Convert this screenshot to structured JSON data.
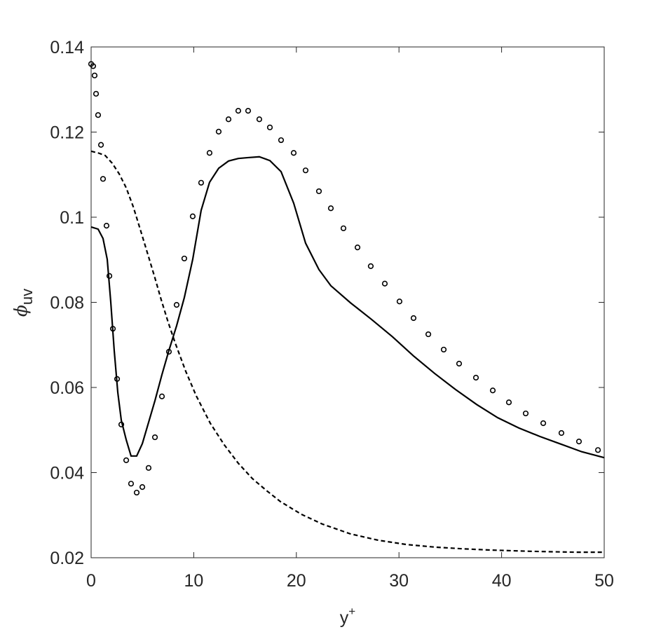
{
  "chart_data": {
    "type": "line",
    "xlabel": {
      "base": "y",
      "sup": "+"
    },
    "ylabel": {
      "symbol": "ϕ",
      "sub": "uv"
    },
    "xlim": [
      0,
      50
    ],
    "xticks": [
      0,
      10,
      20,
      30,
      40,
      50
    ],
    "ylim": [
      0.02,
      0.14
    ],
    "yticks": [
      0.02,
      0.04,
      0.06,
      0.08,
      0.1,
      0.12,
      0.14
    ],
    "series": [
      {
        "style": "markers",
        "color": "#000000",
        "x": [
          0,
          0.2,
          0.34,
          0.48,
          0.68,
          0.96,
          1.16,
          1.5,
          1.78,
          2.12,
          2.53,
          2.94,
          3.42,
          3.89,
          4.44,
          4.99,
          5.6,
          6.22,
          6.9,
          7.58,
          8.33,
          9.08,
          9.9,
          10.72,
          11.54,
          12.43,
          13.39,
          14.34,
          15.3,
          16.39,
          17.42,
          18.51,
          19.74,
          20.9,
          22.2,
          23.36,
          24.59,
          25.96,
          27.25,
          28.62,
          30.05,
          31.42,
          32.86,
          34.36,
          35.86,
          37.5,
          39.14,
          40.71,
          42.35,
          44.06,
          45.83,
          47.54,
          49.39
        ],
        "values": [
          0.136,
          0.1355,
          0.1333,
          0.129,
          0.124,
          0.117,
          0.109,
          0.098,
          0.0862,
          0.0738,
          0.062,
          0.0513,
          0.0429,
          0.0374,
          0.0353,
          0.0366,
          0.0411,
          0.0483,
          0.0579,
          0.0684,
          0.0794,
          0.0903,
          0.1002,
          0.1081,
          0.1151,
          0.1201,
          0.123,
          0.125,
          0.125,
          0.123,
          0.1211,
          0.1181,
          0.1151,
          0.111,
          0.1061,
          0.1021,
          0.0974,
          0.0929,
          0.0885,
          0.0844,
          0.0802,
          0.0763,
          0.0725,
          0.0689,
          0.0656,
          0.0623,
          0.0593,
          0.0565,
          0.0539,
          0.0516,
          0.0493,
          0.0473,
          0.0453
        ]
      },
      {
        "style": "solid",
        "color": "#000000",
        "x": [
          0,
          0.68,
          1.16,
          1.57,
          1.91,
          2.25,
          2.6,
          2.94,
          3.42,
          3.89,
          4.44,
          4.99,
          5.6,
          6.22,
          6.9,
          7.58,
          8.33,
          9.08,
          9.9,
          10.72,
          11.54,
          12.43,
          13.39,
          14.34,
          15.3,
          16.39,
          17.42,
          18.51,
          19.74,
          20.9,
          22.2,
          23.36,
          25.27,
          27.32,
          29.37,
          31.42,
          33.47,
          35.52,
          37.57,
          39.62,
          41.67,
          43.72,
          45.77,
          47.81,
          50
        ],
        "values": [
          0.0977,
          0.0972,
          0.095,
          0.0901,
          0.0802,
          0.0687,
          0.0588,
          0.0523,
          0.0477,
          0.0439,
          0.0439,
          0.0468,
          0.0518,
          0.0569,
          0.063,
          0.0687,
          0.0745,
          0.0811,
          0.0901,
          0.1016,
          0.1082,
          0.1115,
          0.1132,
          0.1138,
          0.114,
          0.1142,
          0.1133,
          0.1107,
          0.1033,
          0.0939,
          0.0877,
          0.0839,
          0.0799,
          0.076,
          0.0719,
          0.0674,
          0.0633,
          0.0595,
          0.056,
          0.0529,
          0.0505,
          0.0485,
          0.0467,
          0.0449,
          0.0435
        ]
      },
      {
        "style": "dashed",
        "color": "#000000",
        "x": [
          0,
          0.68,
          1.37,
          2.05,
          2.73,
          3.42,
          4.1,
          4.78,
          5.46,
          6.15,
          6.83,
          7.51,
          8.2,
          9.22,
          10.25,
          11.61,
          12.98,
          14.34,
          15.71,
          17.08,
          18.44,
          20.49,
          22.54,
          25.27,
          28.0,
          30.74,
          33.47,
          36.2,
          38.93,
          43.03,
          47.13,
          50
        ],
        "values": [
          0.1155,
          0.1151,
          0.1145,
          0.1127,
          0.1102,
          0.1069,
          0.1025,
          0.0972,
          0.0918,
          0.0863,
          0.0806,
          0.0753,
          0.0704,
          0.0638,
          0.058,
          0.0516,
          0.0465,
          0.0422,
          0.0386,
          0.0358,
          0.0332,
          0.0302,
          0.0279,
          0.0256,
          0.0241,
          0.0231,
          0.0225,
          0.0221,
          0.0218,
          0.0215,
          0.0213,
          0.0213
        ]
      }
    ]
  }
}
